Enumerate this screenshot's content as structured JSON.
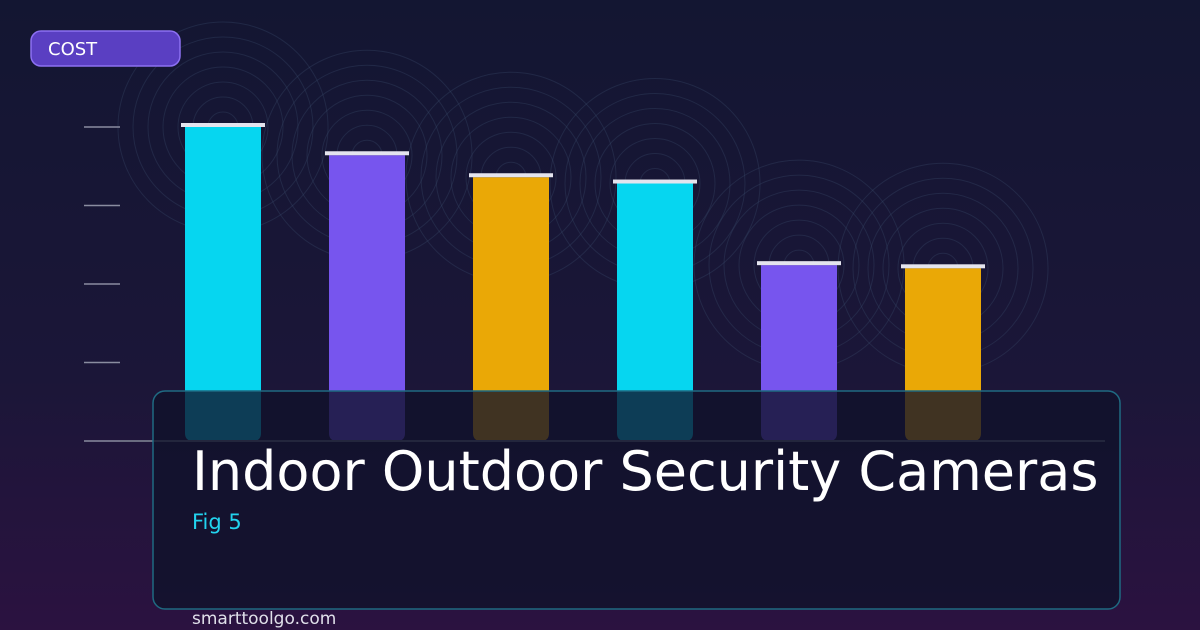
{
  "chart_data": {
    "type": "bar",
    "title": "Indoor Outdoor Security Cameras",
    "subtitle": "Fig 5",
    "y_label": "COST",
    "source": "smarttoolgo.com",
    "values": [
      100,
      91,
      84,
      82,
      56,
      55
    ],
    "colors": [
      "#06d6f0",
      "#7755ee",
      "#eaa806",
      "#06d6f0",
      "#7755ee",
      "#eaa806"
    ],
    "ylim": [
      0,
      100
    ],
    "yticks": [
      0,
      25,
      50,
      75,
      100
    ]
  }
}
